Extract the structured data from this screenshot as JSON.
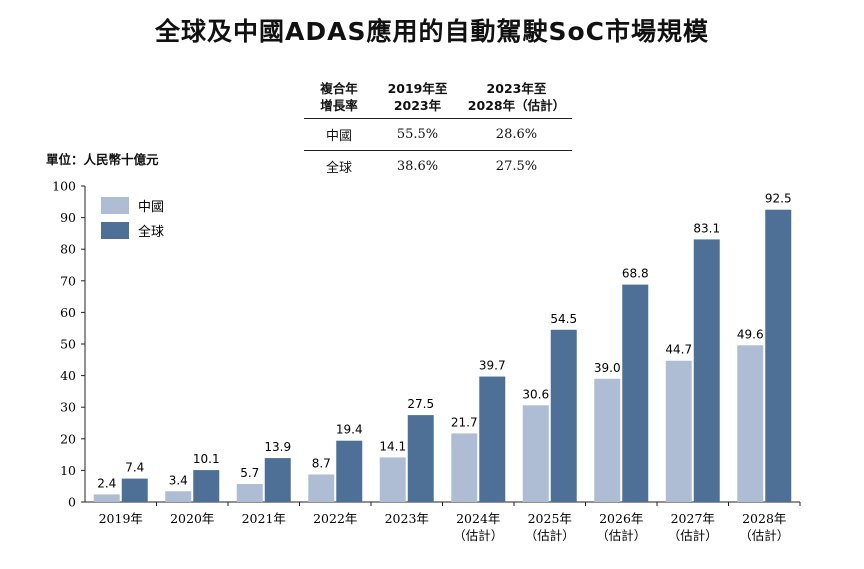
{
  "title": "全球及中國ADAS應用的自動駕駛SoC市場規模",
  "unit": "單位：人民幣十億元",
  "cagr_table": {
    "headers": [
      [
        "複合年",
        "增長率"
      ],
      [
        "2019年至",
        "2023年"
      ],
      [
        "2023年至",
        "2028年（估計）"
      ]
    ],
    "rows": [
      [
        "中國",
        "55.5%",
        "28.6%"
      ],
      [
        "全球",
        "38.6%",
        "27.5%"
      ]
    ]
  },
  "chart_data": {
    "type": "bar",
    "categories": [
      [
        "2019年"
      ],
      [
        "2020年"
      ],
      [
        "2021年"
      ],
      [
        "2022年"
      ],
      [
        "2023年"
      ],
      [
        "2024年",
        "（估計）"
      ],
      [
        "2025年",
        "（估計）"
      ],
      [
        "2026年",
        "（估計）"
      ],
      [
        "2027年",
        "（估計）"
      ],
      [
        "2028年",
        "（估計）"
      ]
    ],
    "series": [
      {
        "name": "中國",
        "color": "#afbdd4",
        "values": [
          2.4,
          3.4,
          5.7,
          8.7,
          14.1,
          21.7,
          30.6,
          39.0,
          44.7,
          49.6
        ],
        "labels": [
          "2.4",
          "3.4",
          "5.7",
          "8.7",
          "14.1",
          "21.7",
          "30.6",
          "39.0",
          "44.7",
          "49.6"
        ]
      },
      {
        "name": "全球",
        "color": "#4e7097",
        "values": [
          7.4,
          10.1,
          13.9,
          19.4,
          27.5,
          39.7,
          54.5,
          68.8,
          83.1,
          92.5
        ],
        "labels": [
          "7.4",
          "10.1",
          "13.9",
          "19.4",
          "27.5",
          "39.7",
          "54.5",
          "68.8",
          "83.1",
          "92.5"
        ]
      }
    ],
    "ylim": [
      0,
      100
    ],
    "yticks": [
      0,
      10,
      20,
      30,
      40,
      50,
      60,
      70,
      80,
      90,
      100
    ],
    "legend": "top-left",
    "grid": false
  }
}
